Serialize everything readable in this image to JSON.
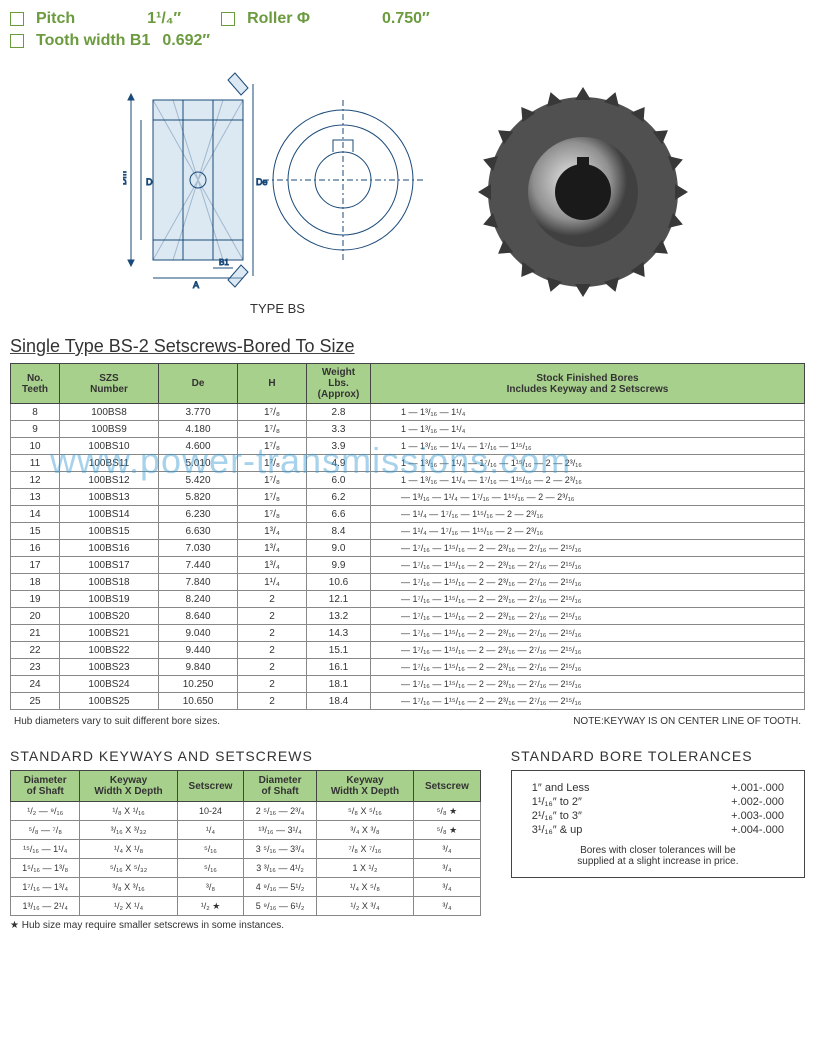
{
  "specs": {
    "pitch_label": "Pitch",
    "pitch_value": "1¹/₄″",
    "roller_label": "Roller Φ",
    "roller_value": "0.750″",
    "tooth_label": "Tooth width B1",
    "tooth_value": "0.692″"
  },
  "type_label": "TYPE BS",
  "main_title": "Single Type  BS-2 Setscrews-Bored To Size",
  "main_headers": {
    "teeth": "No.\nTeeth",
    "szs": "SZS\nNumber",
    "de": "De",
    "h": "H",
    "weight": "Weight\nLbs.\n(Approx)",
    "bores": "Stock Finished Bores\nIncludes Keyway and 2 Setscrews"
  },
  "main_rows": [
    {
      "t": "8",
      "szs": "100BS8",
      "de": "3.770",
      "h": "1⁷/₈",
      "w": "2.8",
      "bore": "1 — 1³/₁₆ — 1¹/₄"
    },
    {
      "t": "9",
      "szs": "100BS9",
      "de": "4.180",
      "h": "1⁷/₈",
      "w": "3.3",
      "bore": "1 — 1³/₁₆ — 1¹/₄"
    },
    {
      "t": "10",
      "szs": "100BS10",
      "de": "4.600",
      "h": "1⁷/₈",
      "w": "3.9",
      "bore": "1 — 1³/₁₆ — 1¹/₄ — 1⁷/₁₆ — 1¹⁵/₁₆"
    },
    {
      "t": "11",
      "szs": "100BS11",
      "de": "5.010",
      "h": "1⁷/₈",
      "w": "4.9",
      "bore": "1 — 1³/₁₆ — 1¹/₄ — 1⁷/₁₆ — 1¹⁵/₁₆ — 2 — 2³/₁₆"
    },
    {
      "t": "12",
      "szs": "100BS12",
      "de": "5.420",
      "h": "1⁷/₈",
      "w": "6.0",
      "bore": "1 — 1³/₁₆ — 1¹/₄ — 1⁷/₁₆ — 1¹⁵/₁₆ — 2 — 2³/₁₆"
    },
    {
      "t": "13",
      "szs": "100BS13",
      "de": "5.820",
      "h": "1⁷/₈",
      "w": "6.2",
      "bore": "— 1³/₁₆ — 1¹/₄ — 1⁷/₁₆ — 1¹⁵/₁₆ — 2 — 2³/₁₆",
      "sep": true
    },
    {
      "t": "14",
      "szs": "100BS14",
      "de": "6.230",
      "h": "1⁷/₈",
      "w": "6.6",
      "bore": "— 1¹/₄ — 1⁷/₁₆ — 1¹⁵/₁₆ — 2 — 2³/₁₆"
    },
    {
      "t": "15",
      "szs": "100BS15",
      "de": "6.630",
      "h": "1³/₄",
      "w": "8.4",
      "bore": "— 1¹/₄ — 1⁷/₁₆ — 1¹⁵/₁₆ — 2 — 2³/₁₆"
    },
    {
      "t": "16",
      "szs": "100BS16",
      "de": "7.030",
      "h": "1³/₄",
      "w": "9.0",
      "bore": "— 1⁷/₁₆ — 1¹⁵/₁₆ — 2 — 2³/₁₆ — 2⁷/₁₆ — 2¹⁵/₁₆"
    },
    {
      "t": "17",
      "szs": "100BS17",
      "de": "7.440",
      "h": "1³/₄",
      "w": "9.9",
      "bore": "— 1⁷/₁₆ — 1¹⁵/₁₆ — 2 — 2³/₁₆ — 2⁷/₁₆ — 2¹⁵/₁₆"
    },
    {
      "t": "18",
      "szs": "100BS18",
      "de": "7.840",
      "h": "1¹/₄",
      "w": "10.6",
      "bore": "— 1⁷/₁₆ — 1¹⁵/₁₆ — 2 — 2³/₁₆ — 2⁷/₁₆ — 2¹⁵/₁₆",
      "sep": true
    },
    {
      "t": "19",
      "szs": "100BS19",
      "de": "8.240",
      "h": "2",
      "w": "12.1",
      "bore": "— 1⁷/₁₆ — 1¹⁵/₁₆ — 2 — 2³/₁₆ — 2⁷/₁₆ — 2¹⁵/₁₆"
    },
    {
      "t": "20",
      "szs": "100BS20",
      "de": "8.640",
      "h": "2",
      "w": "13.2",
      "bore": "— 1⁷/₁₆ — 1¹⁵/₁₆ — 2 — 2³/₁₆ — 2⁷/₁₆ — 2¹⁵/₁₆"
    },
    {
      "t": "21",
      "szs": "100BS21",
      "de": "9.040",
      "h": "2",
      "w": "14.3",
      "bore": "— 1⁷/₁₆ — 1¹⁵/₁₆ — 2 — 2³/₁₆ — 2⁷/₁₆ — 2¹⁵/₁₆"
    },
    {
      "t": "22",
      "szs": "100BS22",
      "de": "9.440",
      "h": "2",
      "w": "15.1",
      "bore": "— 1⁷/₁₆ — 1¹⁵/₁₆ — 2 — 2³/₁₆ — 2⁷/₁₆ — 2¹⁵/₁₆"
    },
    {
      "t": "23",
      "szs": "100BS23",
      "de": "9.840",
      "h": "2",
      "w": "16.1",
      "bore": "— 1⁷/₁₆ — 1¹⁵/₁₆ — 2 — 2³/₁₆ — 2⁷/₁₆ — 2¹⁵/₁₆",
      "sep": true
    },
    {
      "t": "24",
      "szs": "100BS24",
      "de": "10.250",
      "h": "2",
      "w": "18.1",
      "bore": "— 1⁷/₁₆ — 1¹⁵/₁₆ — 2 — 2³/₁₆ — 2⁷/₁₆ — 2¹⁵/₁₆"
    },
    {
      "t": "25",
      "szs": "100BS25",
      "de": "10.650",
      "h": "2",
      "w": "18.4",
      "bore": "— 1⁷/₁₆ — 1¹⁵/₁₆ — 2 — 2³/₁₆ — 2⁷/₁₆ — 2¹⁵/₁₆"
    }
  ],
  "note_left": "Hub diameters vary to suit different bore sizes.",
  "note_right": "NOTE:KEYWAY IS ON CENTER LINE OF TOOTH.",
  "kw_title": "STANDARD KEYWAYS AND SETSCREWS",
  "kw_headers": [
    "Diameter\nof Shaft",
    "Keyway\nWidth X Depth",
    "Setscrew",
    "Diameter\nof Shaft",
    "Keyway\nWidth X Depth",
    "Setscrew"
  ],
  "kw_rows": [
    [
      "¹/₂ — ⁹/₁₆",
      "¹/₈ X ¹/₁₆",
      "10-24",
      "2 ⁵/₁₆ — 2³/₄",
      "⁵/₈ X ⁵/₁₆",
      "⁵/₈ ★"
    ],
    [
      "⁵/₈ — ⁷/₈",
      "³/₁₆ X ³/₃₂",
      "¹/₄",
      "¹³/₁₆ — 3¹/₄",
      "³/₄ X ³/₈",
      "⁵/₈ ★"
    ],
    [
      "¹⁵/₁₆ — 1¹/₄",
      "¹/₄ X ¹/₈",
      "⁵/₁₆",
      "3 ⁵/₁₆ — 3³/₄",
      "⁷/₈ X ⁷/₁₆",
      "³/₄"
    ],
    [
      "1⁵/₁₆ — 1³/₈",
      "⁵/₁₆ X ⁵/₃₂",
      "⁵/₁₆",
      "3 ³/₁₆ — 4¹/₂",
      "1 X ¹/₂",
      "³/₄"
    ],
    [
      "1⁷/₁₆ — 1³/₄",
      "³/₈ X ³/₁₆",
      "³/₈",
      "4 ⁹/₁₆ — 5¹/₂",
      "¹/₄ X ⁵/₈",
      "³/₄"
    ],
    [
      "1³/₁₆ — 2¹/₄",
      "¹/₂ X ¹/₄",
      "¹/₂ ★",
      "5 ⁹/₁₆ — 6¹/₂",
      "¹/₂ X ³/₄",
      "³/₄"
    ]
  ],
  "kw_footnote": "★ Hub size may require smaller setscrews in some instances.",
  "tol_title": "STANDARD BORE TOLERANCES",
  "tol_rows": [
    [
      "1″ and Less",
      "+.001-.000"
    ],
    [
      "1¹/₁₆″ to 2″",
      "+.002-.000"
    ],
    [
      "2¹/₁₆″ to 3″",
      "+.003-.000"
    ],
    [
      "3¹/₁₆″ & up",
      "+.004-.000"
    ]
  ],
  "tol_note": "Bores with closer tolerances will be\nsupplied at a slight increase in price.",
  "watermark": "www.power-transmissions.com",
  "colors": {
    "header_bg": "#a8d08d",
    "spec_text": "#6b9b3e",
    "watermark": "rgba(58,156,210,0.45)"
  }
}
